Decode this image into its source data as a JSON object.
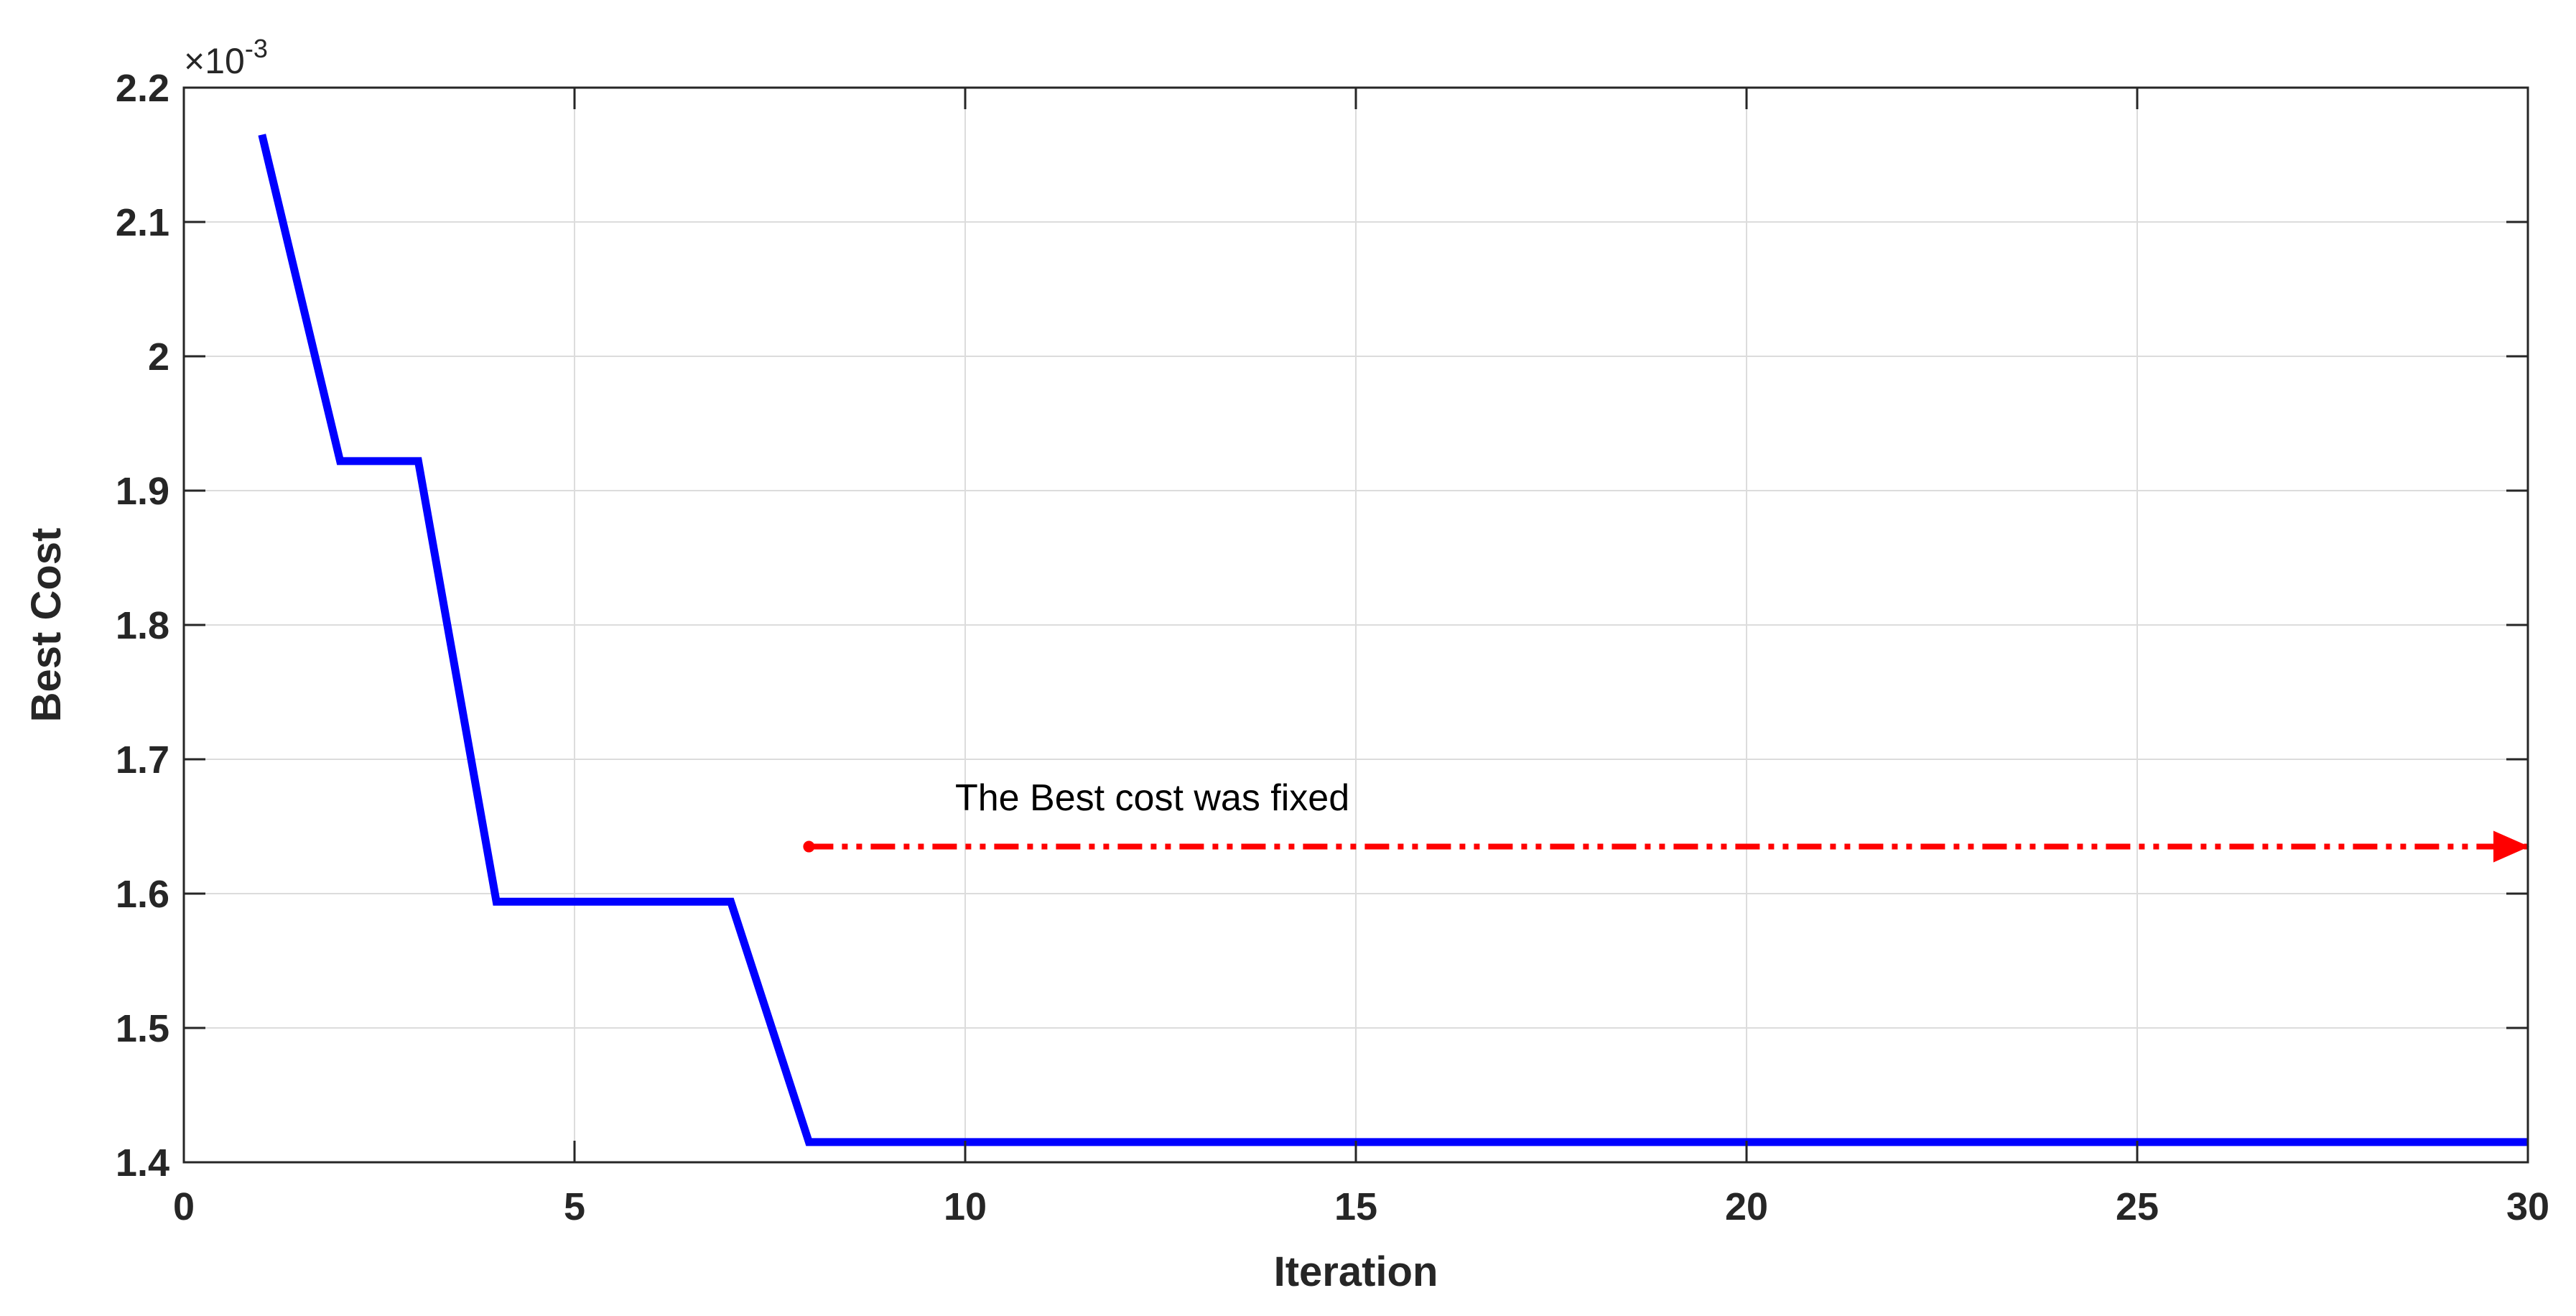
{
  "chart_data": {
    "type": "line",
    "title": "",
    "xlabel": "Iteration",
    "ylabel": "Best Cost",
    "xlim": [
      0,
      30
    ],
    "ylim": [
      0.0014,
      0.0022
    ],
    "x_ticks": [
      0,
      5,
      10,
      15,
      20,
      25,
      30
    ],
    "x_tick_labels": [
      "0",
      "5",
      "10",
      "15",
      "20",
      "25",
      "30"
    ],
    "y_ticks": [
      0.0014,
      0.0015,
      0.0016,
      0.0017,
      0.0018,
      0.0019,
      0.002,
      0.0021,
      0.0022
    ],
    "y_tick_labels": [
      "1.4",
      "1.5",
      "1.6",
      "1.7",
      "1.8",
      "1.9",
      "2",
      "2.1",
      "2.2"
    ],
    "y_exponent": {
      "prefix": "×10",
      "power": "-3"
    },
    "grid": true,
    "series": [
      {
        "color": "#0000ff",
        "x": [
          1,
          2,
          3,
          4,
          5,
          6,
          7,
          8,
          9,
          10,
          11,
          12,
          13,
          14,
          15,
          16,
          17,
          18,
          19,
          20,
          21,
          22,
          23,
          24,
          25,
          26,
          27,
          28,
          29,
          30
        ],
        "y": [
          0.002165,
          0.001922,
          0.001922,
          0.001594,
          0.001594,
          0.001594,
          0.001594,
          0.001415,
          0.001415,
          0.001415,
          0.001415,
          0.001415,
          0.001415,
          0.001415,
          0.001415,
          0.001415,
          0.001415,
          0.001415,
          0.001415,
          0.001415,
          0.001415,
          0.001415,
          0.001415,
          0.001415,
          0.001415,
          0.001415,
          0.001415,
          0.001415,
          0.001415,
          0.001415
        ]
      }
    ],
    "annotations": [
      {
        "text": "The Best cost was fixed",
        "arrow": {
          "x_start": 8,
          "x_end": 30,
          "y": 0.001635
        },
        "color": "#ff0000"
      }
    ]
  }
}
